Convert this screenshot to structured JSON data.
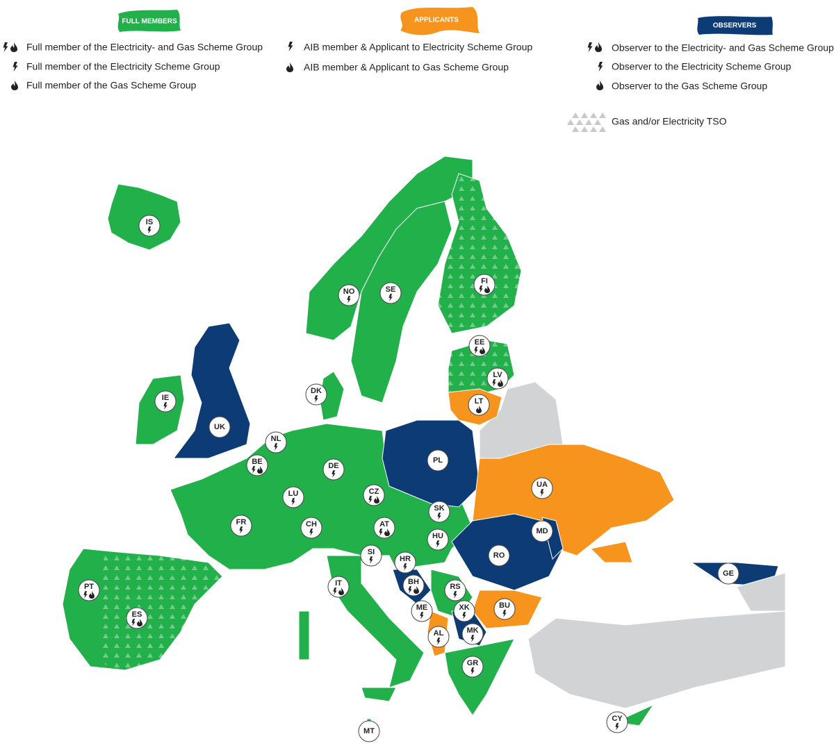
{
  "legend": {
    "full_members": {
      "title": "FULL MEMBERS",
      "items": [
        "Full member of the Electricity- and Gas Scheme Group",
        "Full member of the Electricity Scheme Group",
        "Full member of the Gas Scheme Group"
      ]
    },
    "applicants": {
      "title": "APPLICANTS",
      "items": [
        "AIB member & Applicant to Electricity Scheme Group",
        "AIB member & Applicant to Gas Scheme Group"
      ]
    },
    "observers": {
      "title": "OBSERVERS",
      "items": [
        "Observer to the Electricity- and Gas Scheme Group",
        "Observer to the Electricity Scheme Group",
        "Observer to the Gas Scheme Group"
      ]
    },
    "tso": "Gas and/or Electricity TSO"
  },
  "countries": [
    "IS",
    "NO",
    "SE",
    "FI",
    "EE",
    "LV",
    "LT",
    "DK",
    "IE",
    "UK",
    "NL",
    "BE",
    "DE",
    "PL",
    "CZ",
    "LU",
    "UA",
    "SK",
    "FR",
    "CH",
    "AT",
    "MD",
    "HU",
    "RO",
    "SI",
    "HR",
    "GE",
    "BH",
    "RS",
    "PT",
    "IT",
    "XK",
    "BU",
    "ME",
    "ES",
    "MK",
    "AL",
    "GR",
    "MT",
    "CY"
  ]
}
